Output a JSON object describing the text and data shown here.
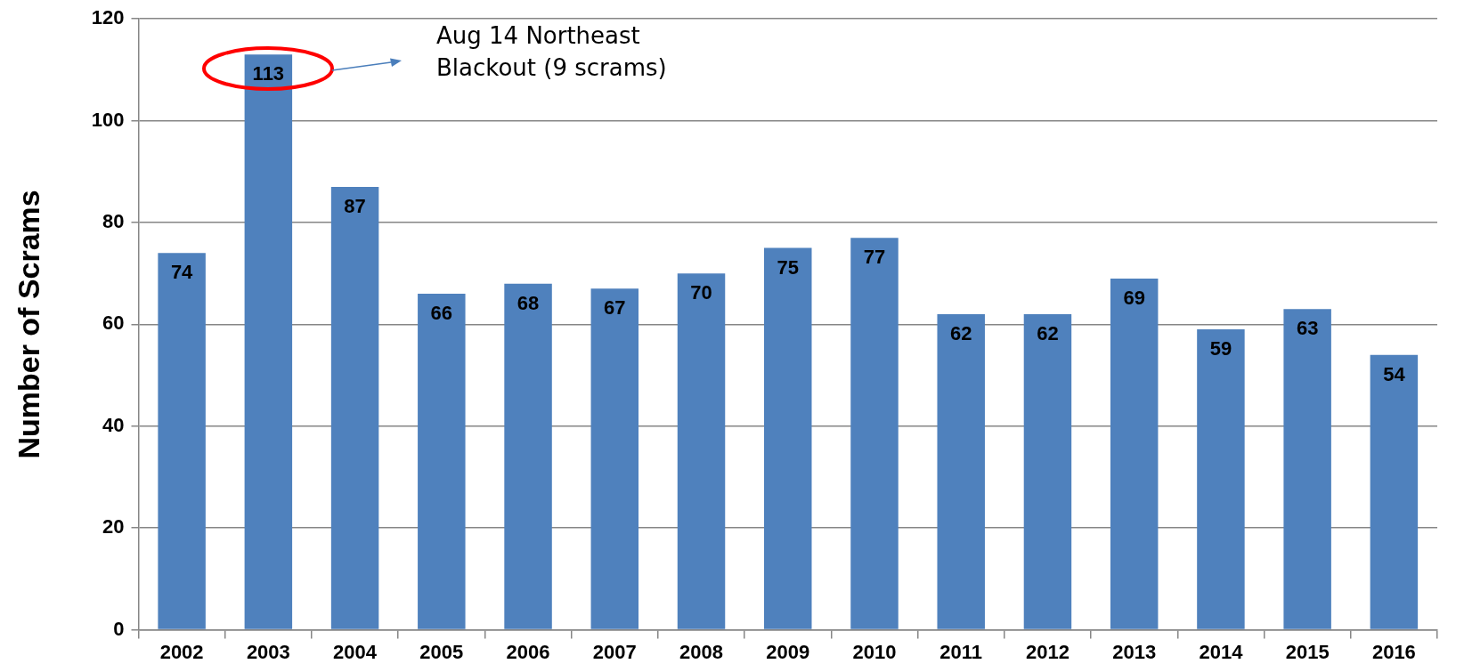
{
  "chart_data": {
    "type": "bar",
    "ylabel": "Number of Scrams",
    "categories": [
      "2002",
      "2003",
      "2004",
      "2005",
      "2006",
      "2007",
      "2008",
      "2009",
      "2010",
      "2011",
      "2012",
      "2013",
      "2014",
      "2015",
      "2016"
    ],
    "values": [
      74,
      113,
      87,
      66,
      68,
      67,
      70,
      75,
      77,
      62,
      62,
      69,
      59,
      63,
      54
    ],
    "color": "#4f81bd",
    "ylim": [
      0,
      120
    ],
    "yticks": [
      0,
      20,
      40,
      60,
      80,
      100,
      120
    ],
    "grid": "y",
    "data_labels": true,
    "legend": false,
    "annotations": [
      "Aug 14 Northeast Blackout (9 scrams)"
    ]
  }
}
